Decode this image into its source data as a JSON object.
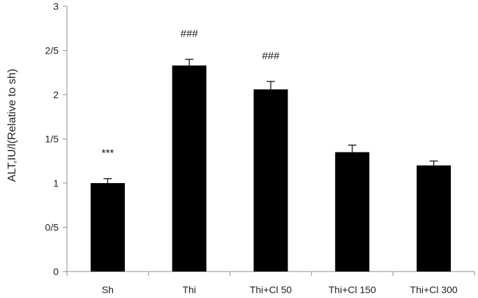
{
  "chart_data": {
    "type": "bar",
    "ylabel": "ALT,IU/l(Relative to sh)",
    "ylim": [
      0,
      3
    ],
    "yticks": [
      {
        "value": 0,
        "label": "0"
      },
      {
        "value": 0.5,
        "label": "0/5"
      },
      {
        "value": 1,
        "label": "1"
      },
      {
        "value": 1.5,
        "label": "1/5"
      },
      {
        "value": 2,
        "label": "2"
      },
      {
        "value": 2.5,
        "label": "2/5"
      },
      {
        "value": 3,
        "label": "3"
      }
    ],
    "categories": [
      "Sh",
      "Thi",
      "Thi+Cl 50",
      "Thi+Cl 150",
      "Thi+Cl 300"
    ],
    "values": [
      1.0,
      2.33,
      2.06,
      1.35,
      1.2
    ],
    "errors": [
      0.05,
      0.07,
      0.09,
      0.08,
      0.05
    ],
    "annotations": [
      "***",
      "###",
      "###",
      "",
      ""
    ],
    "bar_color": "#000000",
    "grid": false
  }
}
